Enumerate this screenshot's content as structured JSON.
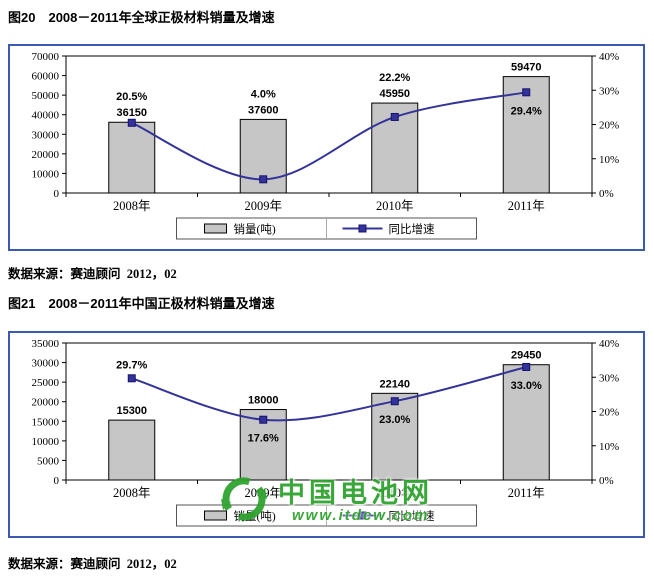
{
  "figures": [
    {
      "title": "图20　2008－2011年全球正极材料销量及增速",
      "source": "数据来源：赛迪顾问  2012，02"
    },
    {
      "title": "图21　2008－2011年中国正极材料销量及增速",
      "source": "数据来源：赛迪顾问  2012，02"
    }
  ],
  "watermark": {
    "name": "中国电池网",
    "url": "www.itdcw.com",
    "color": "#2fa32f"
  },
  "colors": {
    "chart_border": "#3a5bb0",
    "bar_fill": "#c6c6c6",
    "bar_stroke": "#000000",
    "line": "#333399",
    "plot_border": "#000000"
  },
  "chart_data": [
    {
      "type": "bar",
      "title": "2008－2011年全球正极材料销量及增速",
      "categories": [
        "2008年",
        "2009年",
        "2010年",
        "2011年"
      ],
      "series": [
        {
          "name": "销量(吨)",
          "type": "bar",
          "axis": "left",
          "color": "#c6c6c6",
          "values": [
            36150,
            37600,
            45950,
            59470
          ]
        },
        {
          "name": "同比增速",
          "type": "line",
          "axis": "right",
          "color": "#333399",
          "values": [
            20.5,
            4.0,
            22.2,
            29.4
          ]
        }
      ],
      "left_axis": {
        "min": 0,
        "max": 70000,
        "step": 10000,
        "ticks": [
          "0",
          "10000",
          "20000",
          "30000",
          "40000",
          "50000",
          "60000",
          "70000"
        ]
      },
      "right_axis": {
        "min": 0,
        "max": 40,
        "step": 10,
        "ticks": [
          "0%",
          "10%",
          "20%",
          "30%",
          "40%"
        ]
      },
      "value_labels": [
        "36150",
        "37600",
        "45950",
        "59470"
      ],
      "pct_labels": [
        "20.5%",
        "4.0%",
        "22.2%",
        "29.4%"
      ],
      "pct_label_below": [
        false,
        false,
        false,
        true
      ],
      "legend": [
        "销量(吨)",
        "同比增速"
      ],
      "legend_position": "bottom",
      "grid": false
    },
    {
      "type": "bar",
      "title": "2008－2011年中国正极材料销量及增速",
      "categories": [
        "2008年",
        "2009年",
        "2010年",
        "2011年"
      ],
      "series": [
        {
          "name": "销量(吨)",
          "type": "bar",
          "axis": "left",
          "color": "#c6c6c6",
          "values": [
            15300,
            18000,
            22140,
            29450
          ]
        },
        {
          "name": "同比增速",
          "type": "line",
          "axis": "right",
          "color": "#333399",
          "values": [
            29.7,
            17.6,
            23.0,
            33.0
          ]
        }
      ],
      "left_axis": {
        "min": 0,
        "max": 35000,
        "step": 5000,
        "ticks": [
          "0",
          "5000",
          "10000",
          "15000",
          "20000",
          "25000",
          "30000",
          "35000"
        ]
      },
      "right_axis": {
        "min": 0,
        "max": 40,
        "step": 10,
        "ticks": [
          "0%",
          "10%",
          "20%",
          "30%",
          "40%"
        ]
      },
      "value_labels": [
        "15300",
        "18000",
        "22140",
        "29450"
      ],
      "pct_labels": [
        "29.7%",
        "17.6%",
        "23.0%",
        "33.0%"
      ],
      "pct_label_below": [
        false,
        true,
        true,
        true
      ],
      "legend": [
        "销量(吨)",
        "同比增速"
      ],
      "legend_position": "bottom",
      "grid": false
    }
  ]
}
